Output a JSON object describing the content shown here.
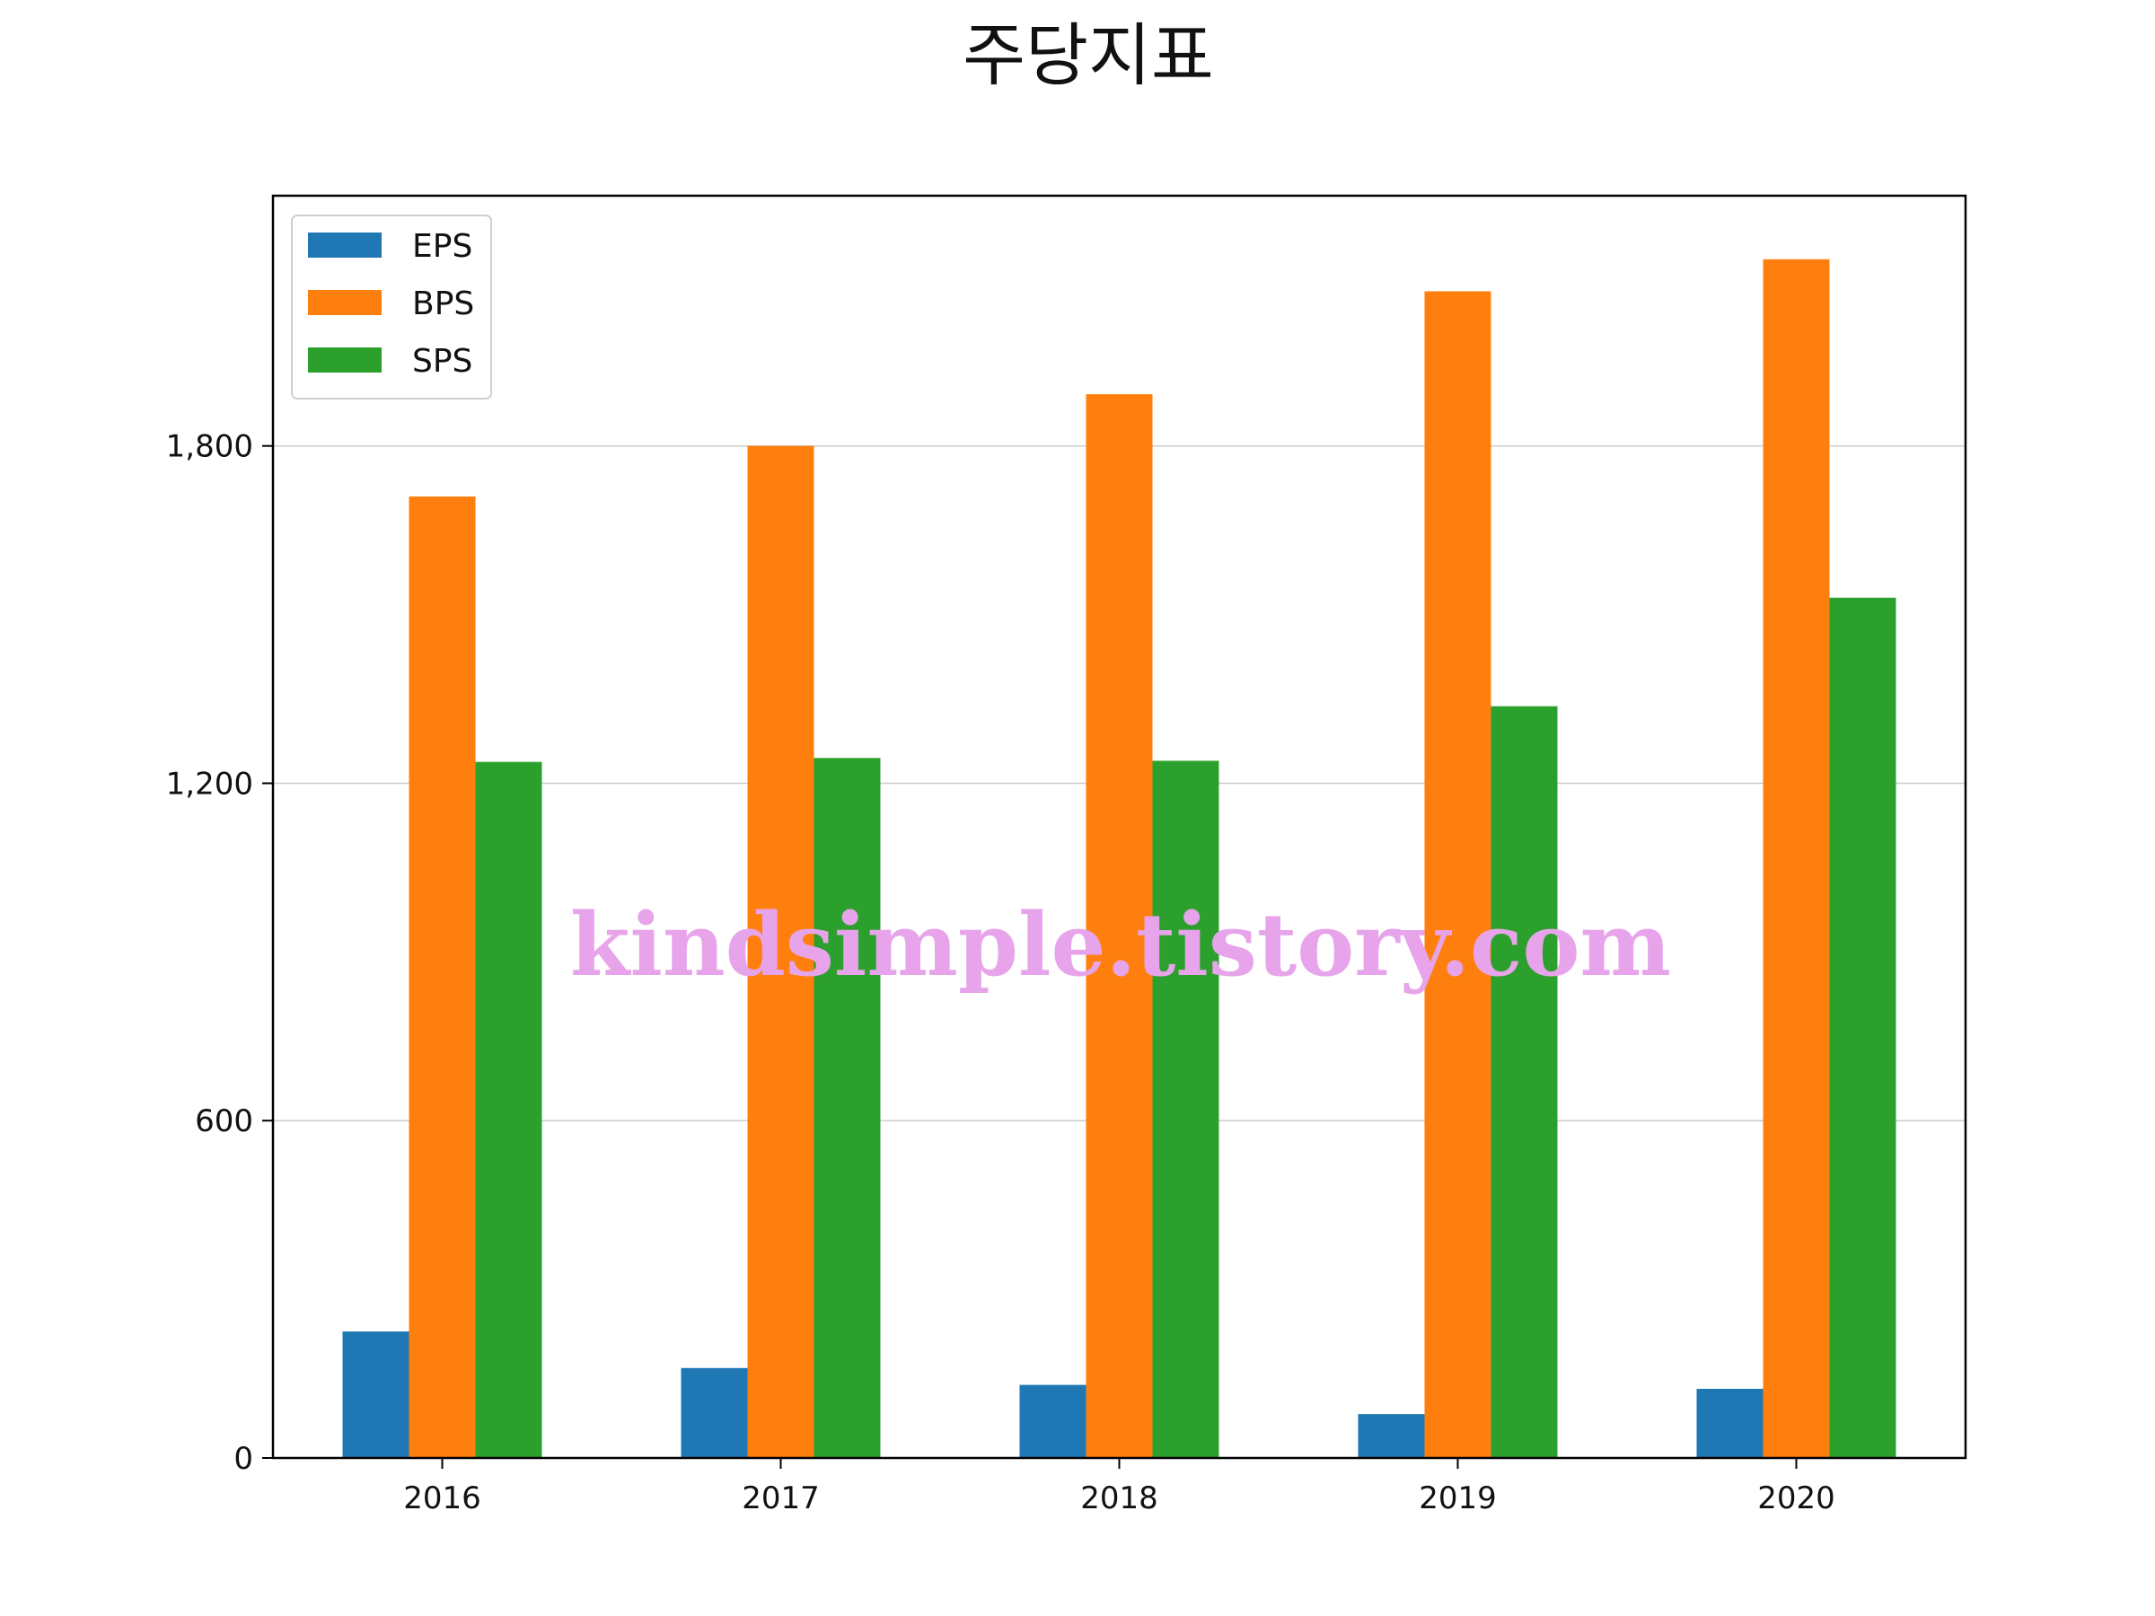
{
  "chart_data": {
    "type": "bar",
    "title": "주당지표",
    "xlabel": "",
    "ylabel": "",
    "categories": [
      "2016",
      "2017",
      "2018",
      "2019",
      "2020"
    ],
    "series": [
      {
        "name": "EPS",
        "color": "#1f77b4",
        "values": [
          225,
          160,
          130,
          78,
          123
        ]
      },
      {
        "name": "BPS",
        "color": "#ff7f0e",
        "values": [
          1710,
          1800,
          1892,
          2075,
          2132
        ]
      },
      {
        "name": "SPS",
        "color": "#2ca02c",
        "values": [
          1238,
          1245,
          1240,
          1337,
          1530
        ]
      }
    ],
    "ylim": [
      0,
      2245
    ],
    "yticks": [
      0,
      600,
      1200,
      1800
    ],
    "ytick_labels": [
      "0",
      "600",
      "1,200",
      "1,800"
    ],
    "grid": "y",
    "legend_position": "top-left",
    "watermark": "kindsimple.tistory.com"
  }
}
